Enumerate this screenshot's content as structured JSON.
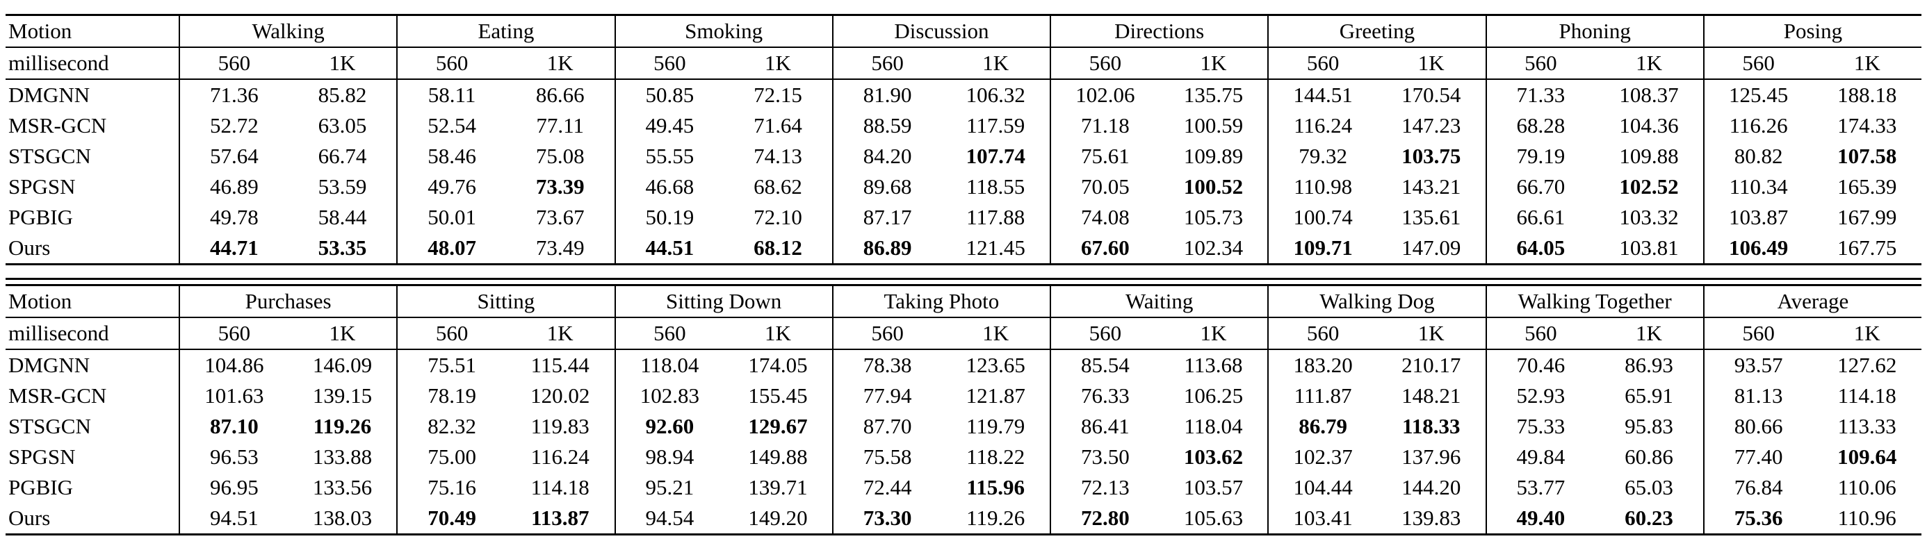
{
  "tables": [
    {
      "id": "top",
      "row_header": "Motion",
      "sub_header": "millisecond",
      "groups": [
        "Walking",
        "Eating",
        "Smoking",
        "Discussion",
        "Directions",
        "Greeting",
        "Phoning",
        "Posing"
      ],
      "subcols": [
        "560",
        "1K"
      ],
      "rows": [
        {
          "method": "DMGNN",
          "values": [
            "71.36",
            "85.82",
            "58.11",
            "86.66",
            "50.85",
            "72.15",
            "81.90",
            "106.32",
            "102.06",
            "135.75",
            "144.51",
            "170.54",
            "71.33",
            "108.37",
            "125.45",
            "188.18"
          ],
          "bold": []
        },
        {
          "method": "MSR-GCN",
          "values": [
            "52.72",
            "63.05",
            "52.54",
            "77.11",
            "49.45",
            "71.64",
            "88.59",
            "117.59",
            "71.18",
            "100.59",
            "116.24",
            "147.23",
            "68.28",
            "104.36",
            "116.26",
            "174.33"
          ],
          "bold": []
        },
        {
          "method": "STSGCN",
          "values": [
            "57.64",
            "66.74",
            "58.46",
            "75.08",
            "55.55",
            "74.13",
            "84.20",
            "107.74",
            "75.61",
            "109.89",
            "79.32",
            "103.75",
            "79.19",
            "109.88",
            "80.82",
            "107.58"
          ],
          "bold": [
            7,
            11,
            15
          ]
        },
        {
          "method": "SPGSN",
          "values": [
            "46.89",
            "53.59",
            "49.76",
            "73.39",
            "46.68",
            "68.62",
            "89.68",
            "118.55",
            "70.05",
            "100.52",
            "110.98",
            "143.21",
            "66.70",
            "102.52",
            "110.34",
            "165.39"
          ],
          "bold": [
            3,
            9,
            13
          ]
        },
        {
          "method": "PGBIG",
          "values": [
            "49.78",
            "58.44",
            "50.01",
            "73.67",
            "50.19",
            "72.10",
            "87.17",
            "117.88",
            "74.08",
            "105.73",
            "100.74",
            "135.61",
            "66.61",
            "103.32",
            "103.87",
            "167.99"
          ],
          "bold": []
        },
        {
          "method": "Ours",
          "values": [
            "44.71",
            "53.35",
            "48.07",
            "73.49",
            "44.51",
            "68.12",
            "86.89",
            "121.45",
            "67.60",
            "102.34",
            "109.71",
            "147.09",
            "64.05",
            "103.81",
            "106.49",
            "167.75"
          ],
          "bold": [
            0,
            1,
            2,
            4,
            5,
            6,
            8,
            10,
            12,
            14
          ]
        }
      ]
    },
    {
      "id": "bottom",
      "row_header": "Motion",
      "sub_header": "millisecond",
      "groups": [
        "Purchases",
        "Sitting",
        "Sitting Down",
        "Taking Photo",
        "Waiting",
        "Walking Dog",
        "Walking Together",
        "Average"
      ],
      "subcols": [
        "560",
        "1K"
      ],
      "rows": [
        {
          "method": "DMGNN",
          "values": [
            "104.86",
            "146.09",
            "75.51",
            "115.44",
            "118.04",
            "174.05",
            "78.38",
            "123.65",
            "85.54",
            "113.68",
            "183.20",
            "210.17",
            "70.46",
            "86.93",
            "93.57",
            "127.62"
          ],
          "bold": []
        },
        {
          "method": "MSR-GCN",
          "values": [
            "101.63",
            "139.15",
            "78.19",
            "120.02",
            "102.83",
            "155.45",
            "77.94",
            "121.87",
            "76.33",
            "106.25",
            "111.87",
            "148.21",
            "52.93",
            "65.91",
            "81.13",
            "114.18"
          ],
          "bold": []
        },
        {
          "method": "STSGCN",
          "values": [
            "87.10",
            "119.26",
            "82.32",
            "119.83",
            "92.60",
            "129.67",
            "87.70",
            "119.79",
            "86.41",
            "118.04",
            "86.79",
            "118.33",
            "75.33",
            "95.83",
            "80.66",
            "113.33"
          ],
          "bold": [
            0,
            1,
            4,
            5,
            10,
            11
          ]
        },
        {
          "method": "SPGSN",
          "values": [
            "96.53",
            "133.88",
            "75.00",
            "116.24",
            "98.94",
            "149.88",
            "75.58",
            "118.22",
            "73.50",
            "103.62",
            "102.37",
            "137.96",
            "49.84",
            "60.86",
            "77.40",
            "109.64"
          ],
          "bold": [
            9,
            15
          ]
        },
        {
          "method": "PGBIG",
          "values": [
            "96.95",
            "133.56",
            "75.16",
            "114.18",
            "95.21",
            "139.71",
            "72.44",
            "115.96",
            "72.13",
            "103.57",
            "104.44",
            "144.20",
            "53.77",
            "65.03",
            "76.84",
            "110.06"
          ],
          "bold": [
            7
          ]
        },
        {
          "method": "Ours",
          "values": [
            "94.51",
            "138.03",
            "70.49",
            "113.87",
            "94.54",
            "149.20",
            "73.30",
            "119.26",
            "72.80",
            "105.63",
            "103.41",
            "139.83",
            "49.40",
            "60.23",
            "75.36",
            "110.96"
          ],
          "bold": [
            2,
            3,
            6,
            8,
            12,
            13,
            14
          ]
        }
      ]
    }
  ]
}
